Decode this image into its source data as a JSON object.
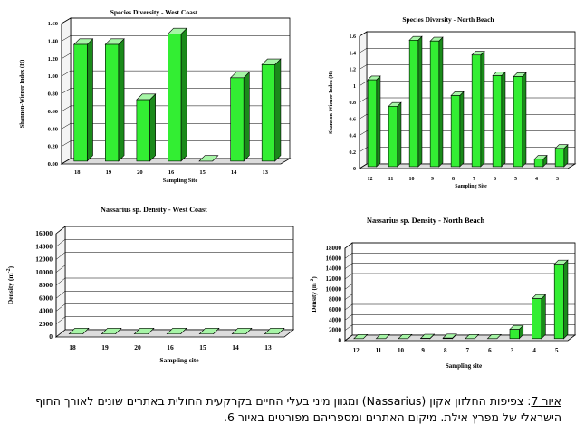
{
  "chart_data": [
    {
      "type": "bar",
      "title": "Species Diversity - West Coast",
      "xlabel": "Sampling Site",
      "ylabel": "Shannon-Wiener Index (H)",
      "categories": [
        "18",
        "19",
        "20",
        "16",
        "15",
        "14",
        "13"
      ],
      "values": [
        1.33,
        1.33,
        0.7,
        1.45,
        0.0,
        0.95,
        1.1
      ],
      "ylim": [
        0,
        1.6
      ],
      "yticks": [
        "0.00",
        "0.20",
        "0.40",
        "0.60",
        "0.80",
        "1.00",
        "1.20",
        "1.40",
        "1.60"
      ],
      "grid": true,
      "bar_color": "#33ee33"
    },
    {
      "type": "bar",
      "title": "Species Diversity - North Beach",
      "xlabel": "Sampling Site",
      "ylabel": "Shannon-Wiener Index (H)",
      "categories": [
        "12",
        "11",
        "10",
        "9",
        "8",
        "7",
        "6",
        "5",
        "4",
        "3"
      ],
      "values": [
        1.05,
        0.73,
        1.53,
        1.52,
        0.86,
        1.35,
        1.1,
        1.09,
        0.09,
        0.22
      ],
      "ylim": [
        0,
        1.6
      ],
      "yticks": [
        "0",
        "0.2",
        "0.4",
        "0.6",
        "0.8",
        "1",
        "1.2",
        "1.4",
        "1.6"
      ],
      "grid": true,
      "bar_color": "#33ee33"
    },
    {
      "type": "bar",
      "title": "Nassarius sp. Density - West Coast",
      "xlabel": "Sampling site",
      "ylabel": "Density (m",
      "ylabel_sup": "-2",
      "categories": [
        "18",
        "19",
        "20",
        "16",
        "15",
        "14",
        "13"
      ],
      "values": [
        0,
        0,
        0,
        0,
        0,
        0,
        0
      ],
      "ylim": [
        0,
        16000
      ],
      "yticks": [
        "0",
        "2000",
        "4000",
        "6000",
        "8000",
        "10000",
        "12000",
        "14000",
        "16000"
      ],
      "grid": true,
      "bar_color": "#33ee33"
    },
    {
      "type": "bar",
      "title": "Nassarius sp. Density - North Beach",
      "xlabel": "Sampling site",
      "ylabel": "Density (m",
      "ylabel_sup": "-2",
      "categories": [
        "12",
        "11",
        "10",
        "9",
        "8",
        "7",
        "6",
        "3",
        "4",
        "5"
      ],
      "values": [
        0,
        0,
        0,
        50,
        100,
        0,
        0,
        1800,
        7800,
        14500
      ],
      "ylim": [
        0,
        18000
      ],
      "yticks": [
        "0",
        "2000",
        "4000",
        "6000",
        "8000",
        "10000",
        "12000",
        "14000",
        "16000",
        "18000"
      ],
      "grid": true,
      "bar_color": "#33ee33"
    }
  ],
  "caption": {
    "label": "איור 7",
    "text": ": צפיפות החלזון אקון (Nassarius) ומגוון מיני בעלי החיים בקרקעית החולית באתרים שונים לאורך החוף הישראלי של מפרץ אילת. מיקום האתרים ומספריהם מפורטים באיור 6."
  }
}
